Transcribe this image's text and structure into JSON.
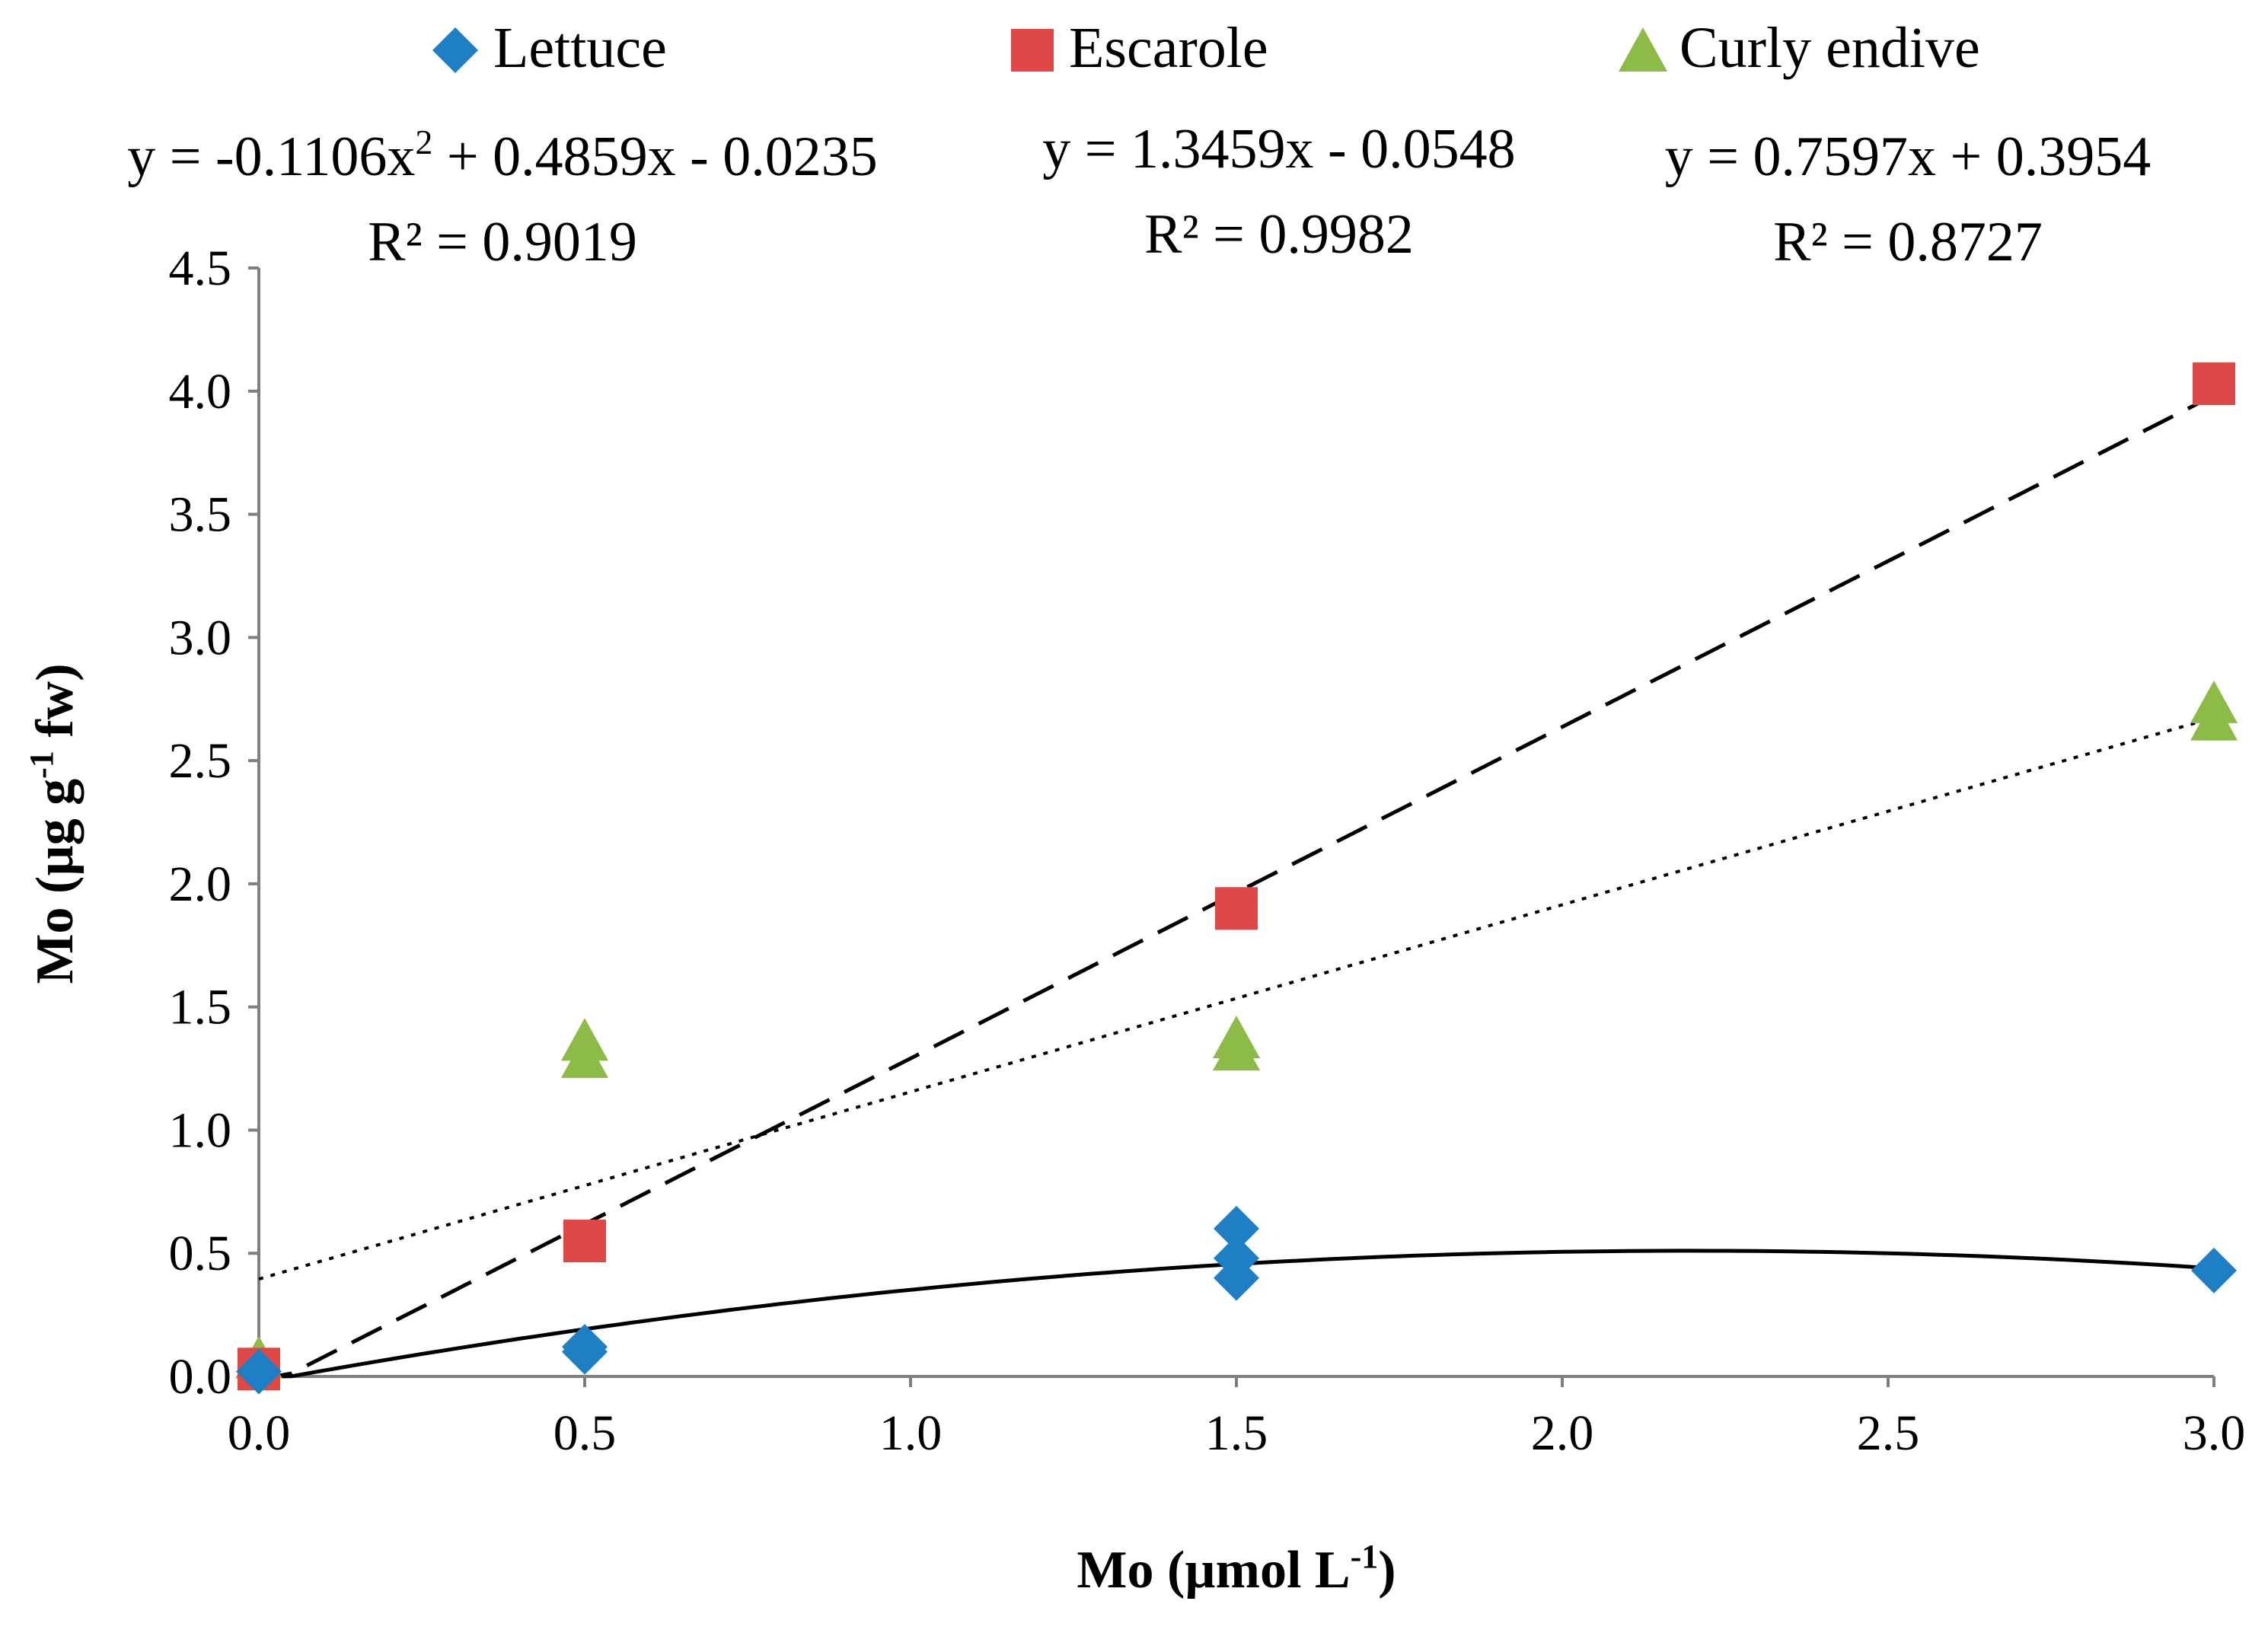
{
  "chart_data": {
    "type": "scatter",
    "title": "",
    "xlabel": {
      "main": "Mo (µmol L",
      "sup": "-1",
      "close": ")"
    },
    "ylabel": {
      "main": "Mo (µg g",
      "sup": "-1",
      "tail": " fw)"
    },
    "xlim": [
      0,
      3
    ],
    "ylim": [
      0,
      4.5
    ],
    "x_ticks": [
      "0.0",
      "0.5",
      "1.0",
      "1.5",
      "2.0",
      "2.5",
      "3.0"
    ],
    "y_ticks": [
      "0.0",
      "0.5",
      "1.0",
      "1.5",
      "2.0",
      "2.5",
      "3.0",
      "3.5",
      "4.0",
      "4.5"
    ],
    "grid": false,
    "legend_position": "top",
    "series": [
      {
        "name": "Lettuce",
        "marker": "diamond",
        "color": "#1f7fc4",
        "points": [
          [
            0,
            0.02
          ],
          [
            0.5,
            0.1
          ],
          [
            0.5,
            0.12
          ],
          [
            1.5,
            0.4
          ],
          [
            1.5,
            0.48
          ],
          [
            1.5,
            0.6
          ],
          [
            3.0,
            0.43
          ]
        ],
        "trend": {
          "kind": "poly2",
          "a": -0.1106,
          "b": 0.4859,
          "c": -0.0235,
          "style": "solid"
        },
        "equation": {
          "pre": "y = -0.1106x",
          "sup": "2",
          "post": " + 0.4859x - 0.0235",
          "r2_label": "R² = 0.9019"
        }
      },
      {
        "name": "Escarole",
        "marker": "square",
        "color": "#e04848",
        "points": [
          [
            0,
            0.03
          ],
          [
            0.5,
            0.55
          ],
          [
            1.5,
            1.9
          ],
          [
            3.0,
            4.03
          ]
        ],
        "trend": {
          "kind": "linear",
          "m": 1.3459,
          "b": -0.0548,
          "style": "dashed"
        },
        "equation": {
          "pre": "y = 1.3459x - 0.0548",
          "r2_label": "R² = 0.9982"
        }
      },
      {
        "name": "Curly endive",
        "marker": "triangle",
        "color": "#8cbb47",
        "points": [
          [
            0,
            0.06
          ],
          [
            0.5,
            1.28
          ],
          [
            0.5,
            1.35
          ],
          [
            1.5,
            1.31
          ],
          [
            1.5,
            1.36
          ],
          [
            3.0,
            2.65
          ],
          [
            3.0,
            2.72
          ]
        ],
        "trend": {
          "kind": "linear",
          "m": 0.7597,
          "b": 0.3954,
          "style": "dotted"
        },
        "equation": {
          "pre": "y = 0.7597x + 0.3954",
          "r2_label": "R² = 0.8727"
        }
      }
    ]
  }
}
